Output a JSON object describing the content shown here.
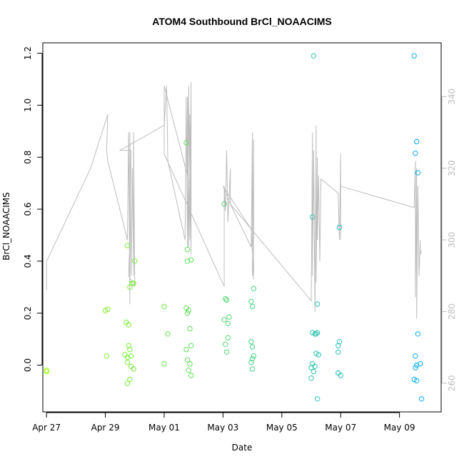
{
  "chart_data": {
    "type": "scatter",
    "title": "ATOM4 Southbound BrCl_NOAACIMS",
    "xlabel": "Date",
    "ylabel": "BrCl_NOAACIMS",
    "xlim": [
      "2018-04-26T21:00",
      "2018-05-10T10:00"
    ],
    "ylim": [
      -0.18,
      1.24
    ],
    "y2lim": [
      252,
      355
    ],
    "x_ticks": [
      {
        "at": "2018-04-27",
        "label": "Apr 27"
      },
      {
        "at": "2018-04-29",
        "label": "Apr 29"
      },
      {
        "at": "2018-05-01",
        "label": "May 01"
      },
      {
        "at": "2018-05-03",
        "label": "May 03"
      },
      {
        "at": "2018-05-05",
        "label": "May 05"
      },
      {
        "at": "2018-05-07",
        "label": "May 07"
      },
      {
        "at": "2018-05-09",
        "label": "May 09"
      }
    ],
    "y_ticks": [
      "0.0",
      "0.2",
      "0.4",
      "0.6",
      "0.8",
      "1.0",
      "1.2"
    ],
    "y2_ticks": [
      "260",
      "280",
      "300",
      "320",
      "340"
    ],
    "grid": false,
    "colors": {
      "line": "#bdbdbd",
      "point_start": "#9aff00",
      "point_end": "#00a8ff"
    },
    "series": [
      {
        "type": "scatter",
        "axis": "left",
        "points": [
          [
            "2018-04-27T00:00",
            -0.02
          ],
          [
            "2018-04-27T00:00",
            -0.025
          ],
          [
            "2018-04-29T00:00",
            0.21
          ],
          [
            "2018-04-29T02:00",
            0.215
          ],
          [
            "2018-04-29T01:00",
            0.035
          ],
          [
            "2018-04-29T18:00",
            0.46
          ],
          [
            "2018-04-29T20:00",
            0.3
          ],
          [
            "2018-04-29T22:00",
            0.315
          ],
          [
            "2018-04-29T23:00",
            0.315
          ],
          [
            "2018-04-30T00:00",
            0.4
          ],
          [
            "2018-04-29T17:00",
            0.165
          ],
          [
            "2018-04-29T19:00",
            0.155
          ],
          [
            "2018-04-29T16:00",
            0.04
          ],
          [
            "2018-04-29T18:00",
            0.03
          ],
          [
            "2018-04-29T21:00",
            0.035
          ],
          [
            "2018-04-29T19:00",
            0.075
          ],
          [
            "2018-04-29T20:00",
            0.06
          ],
          [
            "2018-04-29T18:00",
            0.01
          ],
          [
            "2018-04-29T21:00",
            -0.005
          ],
          [
            "2018-04-29T23:00",
            -0.015
          ],
          [
            "2018-04-29T20:00",
            -0.055
          ],
          [
            "2018-04-29T18:00",
            -0.07
          ],
          [
            "2018-05-01T00:00",
            0.225
          ],
          [
            "2018-05-01T03:00",
            0.12
          ],
          [
            "2018-05-01T00:00",
            0.005
          ],
          [
            "2018-05-01T18:00",
            0.855
          ],
          [
            "2018-05-01T19:00",
            0.445
          ],
          [
            "2018-05-01T19:00",
            0.4
          ],
          [
            "2018-05-01T22:00",
            0.405
          ],
          [
            "2018-05-01T18:00",
            0.22
          ],
          [
            "2018-05-01T20:00",
            0.21
          ],
          [
            "2018-05-01T19:00",
            0.2
          ],
          [
            "2018-05-01T21:00",
            0.14
          ],
          [
            "2018-05-01T22:00",
            0.075
          ],
          [
            "2018-05-01T18:00",
            0.06
          ],
          [
            "2018-05-01T19:00",
            0.02
          ],
          [
            "2018-05-01T21:00",
            0.005
          ],
          [
            "2018-05-01T20:00",
            -0.02
          ],
          [
            "2018-05-01T22:00",
            -0.04
          ],
          [
            "2018-05-03T01:00",
            0.62
          ],
          [
            "2018-05-03T02:00",
            0.255
          ],
          [
            "2018-05-03T03:00",
            0.25
          ],
          [
            "2018-05-03T05:00",
            0.185
          ],
          [
            "2018-05-03T01:00",
            0.175
          ],
          [
            "2018-05-03T04:00",
            0.16
          ],
          [
            "2018-05-03T04:00",
            0.105
          ],
          [
            "2018-05-03T02:00",
            0.08
          ],
          [
            "2018-05-03T03:00",
            0.05
          ],
          [
            "2018-05-03T23:00",
            0.245
          ],
          [
            "2018-05-04T01:00",
            0.295
          ],
          [
            "2018-05-04T00:00",
            0.225
          ],
          [
            "2018-05-03T23:00",
            0.09
          ],
          [
            "2018-05-04T00:00",
            0.07
          ],
          [
            "2018-05-04T01:00",
            0.035
          ],
          [
            "2018-05-04T00:00",
            0.025
          ],
          [
            "2018-05-03T23:00",
            0.01
          ],
          [
            "2018-05-04T00:00",
            -0.015
          ],
          [
            "2018-05-06T02:00",
            1.19
          ],
          [
            "2018-05-06T01:00",
            0.57
          ],
          [
            "2018-05-06T05:00",
            0.235
          ],
          [
            "2018-05-06T01:00",
            0.125
          ],
          [
            "2018-05-06T03:00",
            0.12
          ],
          [
            "2018-05-06T04:00",
            0.12
          ],
          [
            "2018-05-06T05:00",
            0.125
          ],
          [
            "2018-05-06T04:00",
            0.045
          ],
          [
            "2018-05-06T06:00",
            0.04
          ],
          [
            "2018-05-06T01:00",
            0.005
          ],
          [
            "2018-05-06T03:00",
            -0.005
          ],
          [
            "2018-05-06T00:00",
            -0.01
          ],
          [
            "2018-05-06T02:00",
            -0.025
          ],
          [
            "2018-05-06T00:00",
            -0.05
          ],
          [
            "2018-05-06T05:00",
            -0.13
          ],
          [
            "2018-05-06T23:00",
            0.53
          ],
          [
            "2018-05-06T23:00",
            0.09
          ],
          [
            "2018-05-06T22:00",
            0.075
          ],
          [
            "2018-05-06T22:00",
            0.05
          ],
          [
            "2018-05-06T22:00",
            -0.03
          ],
          [
            "2018-05-07T00:00",
            -0.04
          ],
          [
            "2018-05-09T12:00",
            1.19
          ],
          [
            "2018-05-09T14:00",
            0.86
          ],
          [
            "2018-05-09T13:00",
            0.815
          ],
          [
            "2018-05-09T15:00",
            0.74
          ],
          [
            "2018-05-09T15:00",
            0.12
          ],
          [
            "2018-05-09T13:00",
            0.035
          ],
          [
            "2018-05-09T14:00",
            0.0
          ],
          [
            "2018-05-09T17:00",
            0.005
          ],
          [
            "2018-05-09T13:00",
            -0.01
          ],
          [
            "2018-05-09T12:00",
            -0.055
          ],
          [
            "2018-05-09T14:00",
            -0.06
          ],
          [
            "2018-05-09T18:00",
            -0.13
          ]
        ]
      },
      {
        "type": "line",
        "axis": "right",
        "points": [
          [
            "2018-04-27T00:00",
            286
          ],
          [
            "2018-04-27T00:00",
            294
          ],
          [
            "2018-04-28T12:00",
            320
          ],
          [
            "2018-04-29T02:00",
            335
          ],
          [
            "2018-04-29T01:00",
            325
          ],
          [
            "2018-04-29T02:00",
            322
          ],
          [
            "2018-04-29T18:00",
            300
          ],
          [
            "2018-04-29T19:00",
            330
          ],
          [
            "2018-04-29T20:00",
            282
          ],
          [
            "2018-04-29T20:00",
            330
          ],
          [
            "2018-04-29T21:00",
            290
          ],
          [
            "2018-04-29T22:00",
            320
          ],
          [
            "2018-04-29T23:00",
            290
          ],
          [
            "2018-04-29T23:00",
            330
          ],
          [
            "2018-04-30T00:00",
            287
          ],
          [
            "2018-04-29T19:00",
            290
          ],
          [
            "2018-04-29T20:00",
            300
          ],
          [
            "2018-04-29T21:00",
            325
          ],
          [
            "2018-04-29T18:00",
            325
          ],
          [
            "2018-04-29T12:00",
            325
          ],
          [
            "2018-05-01T00:00",
            332
          ],
          [
            "2018-05-01T02:00",
            343
          ],
          [
            "2018-05-01T03:00",
            322
          ],
          [
            "2018-05-01T17:00",
            300
          ],
          [
            "2018-05-01T18:00",
            340
          ],
          [
            "2018-05-01T19:00",
            298
          ],
          [
            "2018-05-01T20:00",
            343
          ],
          [
            "2018-05-01T21:00",
            300
          ],
          [
            "2018-05-01T22:00",
            344
          ],
          [
            "2018-05-01T22:00",
            296
          ],
          [
            "2018-05-01T21:00",
            335
          ],
          [
            "2018-05-01T20:00",
            298
          ],
          [
            "2018-05-01T19:00",
            340
          ],
          [
            "2018-05-01T19:00",
            318
          ],
          [
            "2018-05-01T00:00",
            343
          ],
          [
            "2018-05-01T00:00",
            324
          ],
          [
            "2018-05-03T01:00",
            287
          ],
          [
            "2018-05-03T01:00",
            315
          ],
          [
            "2018-05-03T02:00",
            308
          ],
          [
            "2018-05-03T03:00",
            325
          ],
          [
            "2018-05-03T04:00",
            305
          ],
          [
            "2018-05-03T05:00",
            312
          ],
          [
            "2018-05-03T06:00",
            320
          ],
          [
            "2018-05-03T06:00",
            310
          ],
          [
            "2018-05-03T23:00",
            298
          ],
          [
            "2018-05-04T00:00",
            330
          ],
          [
            "2018-05-04T00:00",
            290
          ],
          [
            "2018-05-04T01:00",
            328
          ],
          [
            "2018-05-04T01:00",
            289
          ],
          [
            "2018-05-03T23:00",
            303
          ],
          [
            "2018-05-03T00:00",
            315
          ],
          [
            "2018-05-03T06:00",
            310
          ],
          [
            "2018-05-06T00:00",
            283
          ],
          [
            "2018-05-06T01:00",
            330
          ],
          [
            "2018-05-06T01:00",
            290
          ],
          [
            "2018-05-06T02:00",
            325
          ],
          [
            "2018-05-06T03:00",
            280
          ],
          [
            "2018-05-06T04:00",
            332
          ],
          [
            "2018-05-06T04:00",
            288
          ],
          [
            "2018-05-06T05:00",
            323
          ],
          [
            "2018-05-06T05:00",
            300
          ],
          [
            "2018-05-06T06:00",
            318
          ],
          [
            "2018-05-06T07:00",
            294
          ],
          [
            "2018-05-06T08:00",
            317
          ],
          [
            "2018-05-06T22:00",
            313
          ],
          [
            "2018-05-06T23:00",
            300
          ],
          [
            "2018-05-07T00:00",
            324
          ],
          [
            "2018-05-07T00:00",
            300
          ],
          [
            "2018-05-07T00:00",
            320
          ],
          [
            "2018-05-07T00:00",
            315
          ],
          [
            "2018-05-09T12:00",
            309
          ],
          [
            "2018-05-09T13:00",
            322
          ],
          [
            "2018-05-09T13:00",
            284
          ],
          [
            "2018-05-09T14:00",
            320
          ],
          [
            "2018-05-09T14:00",
            278
          ],
          [
            "2018-05-09T15:00",
            315
          ],
          [
            "2018-05-09T16:00",
            290
          ],
          [
            "2018-05-09T17:00",
            300
          ],
          [
            "2018-05-09T17:00",
            296
          ],
          [
            "2018-05-09T18:00",
            297
          ]
        ]
      }
    ]
  }
}
